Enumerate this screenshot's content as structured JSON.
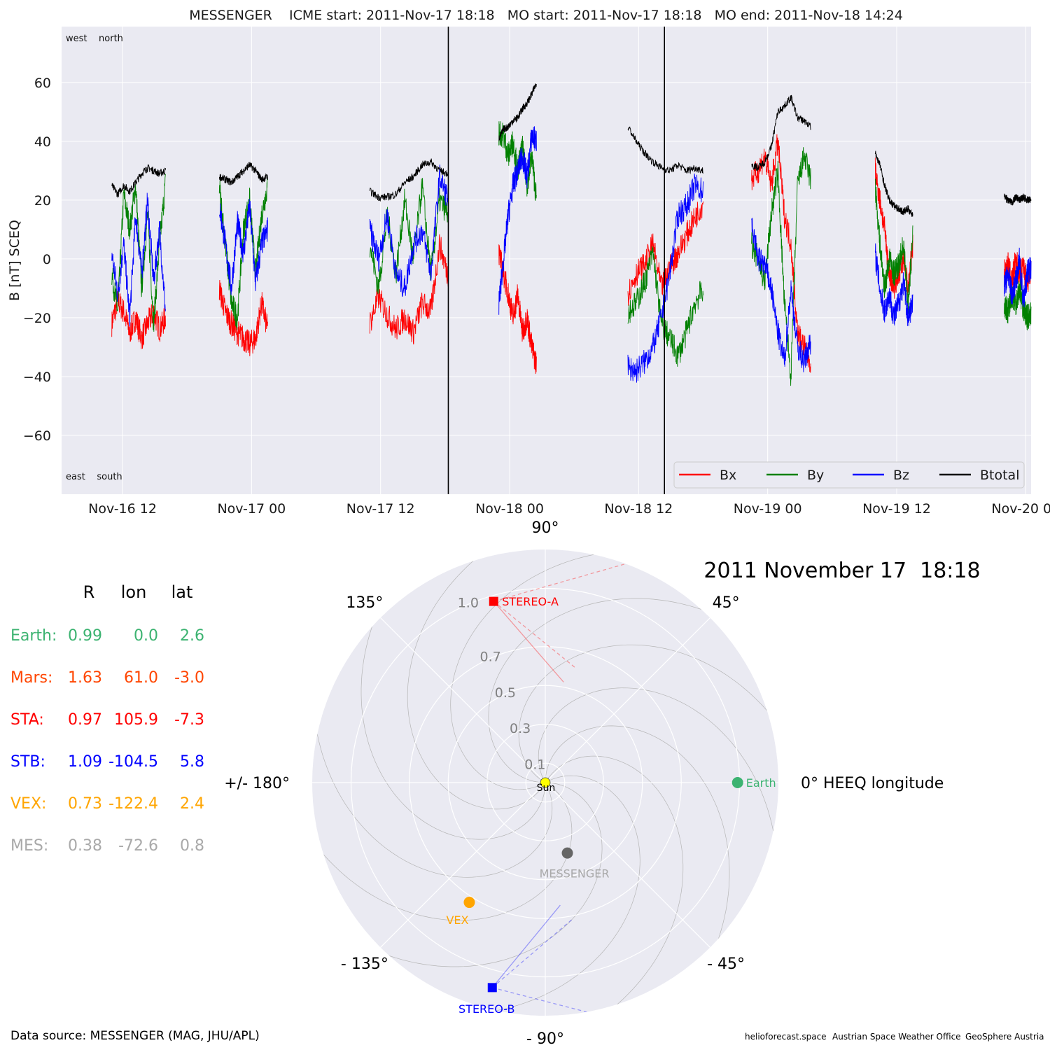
{
  "chart_data": [
    {
      "type": "line",
      "title": "MESSENGER    ICME start: 2011-Nov-17 18:18   MO start: 2011-Nov-17 18:18   MO end: 2011-Nov-18 14:24",
      "ylabel": "B [nT] SCEQ",
      "ylim": [
        -80,
        79
      ],
      "yticks": [
        -60,
        -40,
        -20,
        0,
        20,
        40,
        60
      ],
      "ytick_labels": [
        "−60",
        "−40",
        "−20",
        "0",
        "20",
        "40",
        "60"
      ],
      "xlim": [
        "2011-11-16T06:20",
        "2011-11-20T00:30"
      ],
      "xticks": [
        "2011-11-16T12:00",
        "2011-11-17T00:00",
        "2011-11-17T12:00",
        "2011-11-18T00:00",
        "2011-11-18T12:00",
        "2011-11-19T00:00",
        "2011-11-19T12:00",
        "2011-11-20T00:00"
      ],
      "xtick_labels": [
        "Nov-16 12",
        "Nov-17 00",
        "Nov-17 12",
        "Nov-18 00",
        "Nov-18 12",
        "Nov-19 00",
        "Nov-19 12",
        "Nov-20 00"
      ],
      "corner_labels": {
        "top": "west    north",
        "bottom": "east    south"
      },
      "vlines": [
        "2011-11-17T18:18",
        "2011-11-18T14:24"
      ],
      "legend_position": "lower-right",
      "grid": true,
      "series": [
        {
          "name": "Bx",
          "color": "#ff0000"
        },
        {
          "name": "By",
          "color": "#008000"
        },
        {
          "name": "Bz",
          "color": "#0000ff"
        },
        {
          "name": "Btotal",
          "color": "#000000"
        }
      ],
      "segments": [
        {
          "start": "2011-11-16T11:00",
          "end": "2011-11-16T16:00",
          "Bx": [
            -22,
            -14,
            -18,
            -25,
            -20,
            -27,
            -22,
            -18,
            -24,
            -20
          ],
          "By": [
            -5,
            -18,
            22,
            10,
            25,
            -10,
            15,
            -22,
            5,
            26
          ],
          "Bz": [
            2,
            -12,
            5,
            -20,
            15,
            -5,
            20,
            -8,
            10,
            -18
          ],
          "Btotal": [
            25,
            22,
            25,
            23,
            26,
            29,
            31,
            30,
            29,
            30
          ]
        },
        {
          "start": "2011-11-16T21:00",
          "end": "2011-11-17T01:30",
          "Bx": [
            -10,
            -18,
            -22,
            -25,
            -27,
            -29,
            -27,
            -15,
            -24
          ],
          "By": [
            25,
            5,
            -15,
            -20,
            10,
            20,
            -5,
            15,
            25
          ],
          "Bz": [
            18,
            5,
            -10,
            12,
            2,
            18,
            -8,
            5,
            10
          ],
          "Btotal": [
            28,
            27,
            26,
            28,
            30,
            32,
            30,
            27,
            28
          ]
        },
        {
          "start": "2011-11-17T11:00",
          "end": "2011-11-17T18:18",
          "Bx": [
            -22,
            -13,
            -19,
            -24,
            -20,
            -25,
            -15,
            -18,
            5,
            -6
          ],
          "By": [
            5,
            -10,
            15,
            -5,
            20,
            0,
            25,
            -5,
            20,
            15
          ],
          "Bz": [
            10,
            0,
            15,
            -5,
            -10,
            5,
            10,
            -5,
            28,
            20
          ],
          "Btotal": [
            23,
            21,
            21,
            22,
            26,
            28,
            32,
            33,
            30,
            29
          ]
        },
        {
          "start": "2011-11-17T23:00",
          "end": "2011-11-18T02:30",
          "Bx": [
            2,
            -5,
            -12,
            -20,
            -12,
            -25,
            -20,
            -30,
            -36
          ],
          "By": [
            43,
            42,
            35,
            40,
            30,
            38,
            25,
            35,
            20
          ],
          "Bz": [
            -15,
            0,
            15,
            25,
            30,
            35,
            28,
            42,
            40
          ],
          "Btotal": [
            41,
            44,
            45,
            47,
            48,
            51,
            53,
            56,
            60
          ]
        },
        {
          "start": "2011-11-18T11:00",
          "end": "2011-11-18T18:00",
          "Bx": [
            -12,
            -5,
            -2,
            5,
            -10,
            -3,
            2,
            8,
            14,
            19
          ],
          "By": [
            -18,
            -15,
            -8,
            2,
            -22,
            -27,
            -33,
            -25,
            -15,
            -10
          ],
          "Bz": [
            -37,
            -38,
            -35,
            -30,
            -20,
            -5,
            15,
            18,
            25,
            23
          ],
          "Btotal": [
            45,
            40,
            36,
            33,
            31,
            30,
            32,
            30,
            31,
            30
          ]
        },
        {
          "start": "2011-11-18T22:30",
          "end": "2011-11-19T04:00",
          "Bx": [
            27,
            30,
            35,
            25,
            40,
            15,
            5,
            -25,
            -30,
            -35
          ],
          "By": [
            5,
            0,
            -8,
            15,
            30,
            -15,
            -40,
            25,
            35,
            27
          ],
          "Bz": [
            12,
            0,
            -2,
            -10,
            -25,
            -35,
            -10,
            -30,
            -35,
            -28
          ],
          "Btotal": [
            32,
            31,
            33,
            38,
            50,
            52,
            55,
            48,
            47,
            45
          ]
        },
        {
          "start": "2011-11-19T10:00",
          "end": "2011-11-19T13:30",
          "Bx": [
            30,
            20,
            10,
            -5,
            -10,
            -5,
            0,
            -10,
            5
          ],
          "By": [
            25,
            5,
            -10,
            0,
            -5,
            -2,
            5,
            -15,
            8
          ],
          "Bz": [
            2,
            -10,
            -18,
            -12,
            -20,
            -15,
            -8,
            -20,
            -15
          ],
          "Btotal": [
            36,
            32,
            25,
            20,
            18,
            17,
            16,
            17,
            15
          ]
        },
        {
          "start": "2011-11-19T22:00",
          "end": "2011-11-20T00:30",
          "Bx": [
            -5,
            -2,
            -8,
            0,
            -5,
            -3,
            -8,
            -4
          ],
          "By": [
            -15,
            -18,
            -12,
            -15,
            -10,
            -17,
            -20,
            -18
          ],
          "Bz": [
            -10,
            -5,
            -12,
            -8,
            0,
            -15,
            -5,
            -3
          ],
          "Btotal": [
            21,
            20,
            19,
            21,
            20,
            21,
            20,
            20
          ]
        }
      ]
    },
    {
      "type": "polar",
      "date_label": "2011 November 17  18:18",
      "radial_ticks": [
        0.1,
        0.3,
        0.5,
        0.7,
        1.0
      ],
      "radial_tick_labels": [
        "0.1",
        "0.3",
        "0.5",
        "0.7",
        "1.0"
      ],
      "rlim": [
        0,
        1.2
      ],
      "angle_labels": [
        {
          "deg": 90,
          "text": "90°"
        },
        {
          "deg": 45,
          "text": "45°"
        },
        {
          "deg": 135,
          "text": "135°"
        },
        {
          "deg": 180,
          "text": "+/- 180°"
        },
        {
          "deg": 0,
          "text": "0° HEEQ longitude"
        },
        {
          "deg": -45,
          "text": "- 45°"
        },
        {
          "deg": -135,
          "text": "- 135°"
        },
        {
          "deg": -90,
          "text": "- 90°"
        }
      ],
      "sun_label": "Sun",
      "bodies": [
        {
          "name": "Earth",
          "lon": 0.0,
          "r": 0.99,
          "color": "#3cb371",
          "marker": "circle",
          "label_side": "right"
        },
        {
          "name": "STEREO-A",
          "lon": 105.9,
          "r": 0.97,
          "color": "#ff0000",
          "marker": "square",
          "label_side": "right"
        },
        {
          "name": "STEREO-B",
          "lon": -104.5,
          "r": 1.09,
          "color": "#0000ff",
          "marker": "square",
          "label_side": "below"
        },
        {
          "name": "VEX",
          "lon": -122.4,
          "r": 0.73,
          "color": "#ffa500",
          "marker": "circle",
          "label_side": "below"
        },
        {
          "name": "MESSENGER",
          "lon": -72.6,
          "r": 0.38,
          "color": "#666666",
          "label_color": "#a9a9a9",
          "marker": "circle",
          "label_side": "below"
        }
      ]
    }
  ],
  "position_table": {
    "headers": [
      "R",
      "lon",
      "lat"
    ],
    "rows": [
      {
        "name": "Earth:",
        "R": "0.99",
        "lon": "0.0",
        "lat": "2.6",
        "color": "#3cb371"
      },
      {
        "name": "Mars:",
        "R": "1.63",
        "lon": "61.0",
        "lat": "-3.0",
        "color": "#ff4500"
      },
      {
        "name": "STA:",
        "R": "0.97",
        "lon": "105.9",
        "lat": "-7.3",
        "color": "#ff0000"
      },
      {
        "name": "STB:",
        "R": "1.09",
        "lon": "-104.5",
        "lat": "5.8",
        "color": "#0000ff"
      },
      {
        "name": "VEX:",
        "R": "0.73",
        "lon": "-122.4",
        "lat": "2.4",
        "color": "#ffa500"
      },
      {
        "name": "MES:",
        "R": "0.38",
        "lon": "-72.6",
        "lat": "0.8",
        "color": "#a9a9a9"
      }
    ]
  },
  "footer": {
    "source": "Data source: MESSENGER (MAG, JHU/APL)",
    "credits": [
      "helioforecast.space",
      "Austrian Space Weather Office",
      "GeoSphere Austria"
    ]
  }
}
